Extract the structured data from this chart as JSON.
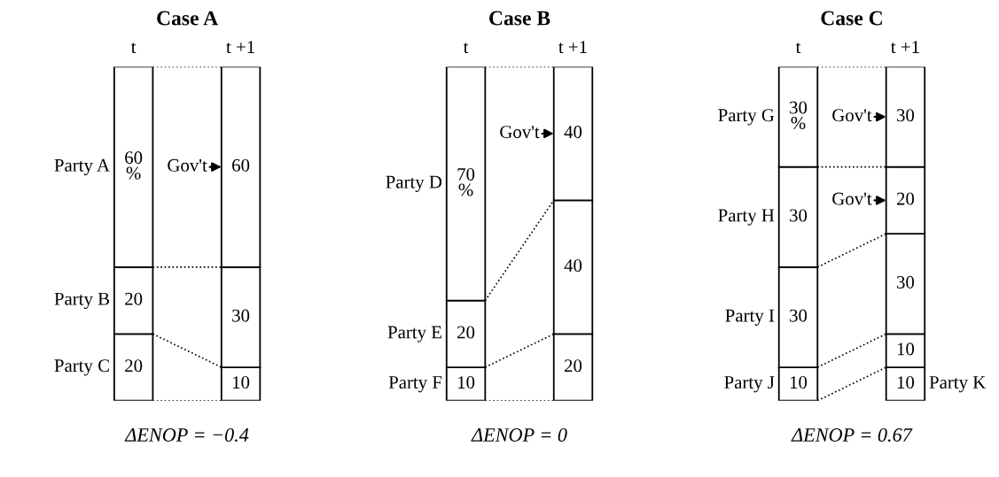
{
  "chart_data": [
    {
      "type": "bar",
      "stacked": true,
      "title": "Case A",
      "xlabel": "ΔENOP = −0.4",
      "categories": [
        "t",
        "t +1"
      ],
      "series": [
        {
          "name": "Party C",
          "color": "#ffffff",
          "values": [
            20,
            10
          ],
          "value_labels": [
            "20",
            "10"
          ]
        },
        {
          "name": "Party B",
          "color": "#ffffff",
          "values": [
            20,
            30
          ],
          "value_labels": [
            "20",
            "30"
          ]
        },
        {
          "name": "Party A",
          "color": "#ffffff",
          "values": [
            60,
            60
          ],
          "value_labels": [
            "60 %",
            "60"
          ]
        }
      ],
      "annotations": [
        "Gov't"
      ]
    },
    {
      "type": "bar",
      "stacked": true,
      "title": "Case B",
      "xlabel": "ΔENOP = 0",
      "categories": [
        "t",
        "t +1"
      ],
      "series": [
        {
          "name": "Party F",
          "color": "#ffffff",
          "values": [
            10,
            20
          ],
          "value_labels": [
            "10",
            "20"
          ]
        },
        {
          "name": "Party E",
          "color": "#ffffff",
          "values": [
            20,
            40
          ],
          "value_labels": [
            "20",
            "40"
          ]
        },
        {
          "name": "Party D",
          "color": "#ffffff",
          "values": [
            70,
            40
          ],
          "value_labels": [
            "70 %",
            "40"
          ]
        }
      ],
      "annotations": [
        "Gov't"
      ]
    },
    {
      "type": "bar",
      "stacked": true,
      "title": "Case C",
      "xlabel": "ΔENOP = 0.67",
      "categories": [
        "t",
        "t +1"
      ],
      "series": [
        {
          "name": "Party K",
          "color": "#ffffff",
          "values": [
            null,
            10
          ],
          "value_labels": [
            null,
            "10"
          ]
        },
        {
          "name": "Party J",
          "color": "#ffffff",
          "values": [
            10,
            10
          ],
          "value_labels": [
            "10",
            "10"
          ]
        },
        {
          "name": "Party I",
          "color": "#ffffff",
          "values": [
            30,
            30
          ],
          "value_labels": [
            "30",
            "30"
          ]
        },
        {
          "name": "Party H",
          "color": "#ffffff",
          "values": [
            30,
            20
          ],
          "value_labels": [
            "30",
            "20"
          ]
        },
        {
          "name": "Party G",
          "color": "#ffffff",
          "values": [
            30,
            30
          ],
          "value_labels": [
            "30 %",
            "30"
          ]
        }
      ],
      "annotations": [
        "Gov't",
        "Gov't"
      ]
    }
  ]
}
